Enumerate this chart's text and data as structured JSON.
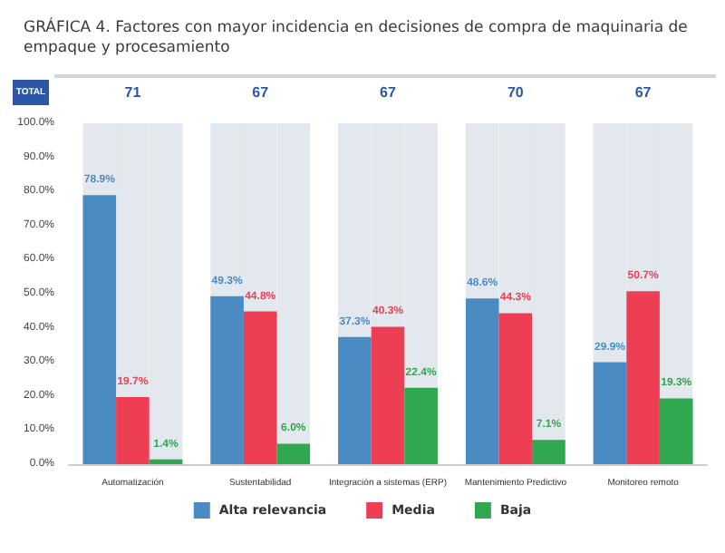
{
  "chart_data": {
    "type": "bar",
    "title": "GRÁFICA 4. Factores con mayor incidencia en decisiones de compra de maquinaria de empaque y procesamiento",
    "categories": [
      "Automatización",
      "Sustentabilidad",
      "Integración a sistemas (ERP)",
      "Mantenimiento Predictivo",
      "Monitoreo remoto"
    ],
    "series": [
      {
        "name": "Alta relevancia",
        "color": "#4a8bc4",
        "values": [
          78.9,
          49.3,
          37.3,
          48.6,
          29.9
        ],
        "value_labels": [
          "78.9%",
          "49.3%",
          "37.3%",
          "48.6%",
          "29.9%"
        ]
      },
      {
        "name": "Media",
        "color": "#ee3e54",
        "values": [
          19.7,
          44.8,
          40.3,
          44.3,
          50.7
        ],
        "value_labels": [
          "19.7%",
          "44.8%",
          "40.3%",
          "44.3%",
          "50.7%"
        ]
      },
      {
        "name": "Baja",
        "color": "#2fa84f",
        "values": [
          1.4,
          6.0,
          22.4,
          7.1,
          19.3
        ],
        "value_labels": [
          "1.4%",
          "6.0%",
          "22.4%",
          "7.1%",
          "19.3%"
        ]
      }
    ],
    "ylim": [
      0,
      100
    ],
    "yticks": [
      {
        "value": 0,
        "label": "0.0%"
      },
      {
        "value": 10,
        "label": "10.0%"
      },
      {
        "value": 20,
        "label": "20.0%"
      },
      {
        "value": 30,
        "label": "30.0%"
      },
      {
        "value": 40,
        "label": "40.0%"
      },
      {
        "value": 50,
        "label": "50.0%"
      },
      {
        "value": 60,
        "label": "60.0%"
      },
      {
        "value": 70,
        "label": "70.0%"
      },
      {
        "value": 80,
        "label": "80.0%"
      },
      {
        "value": 90,
        "label": "90.0%"
      },
      {
        "value": 100,
        "label": "100.0%"
      }
    ],
    "grid": false,
    "legend": "bottom",
    "annotations": [
      "TOTAL",
      "71",
      "67",
      "67",
      "70",
      "67"
    ]
  }
}
